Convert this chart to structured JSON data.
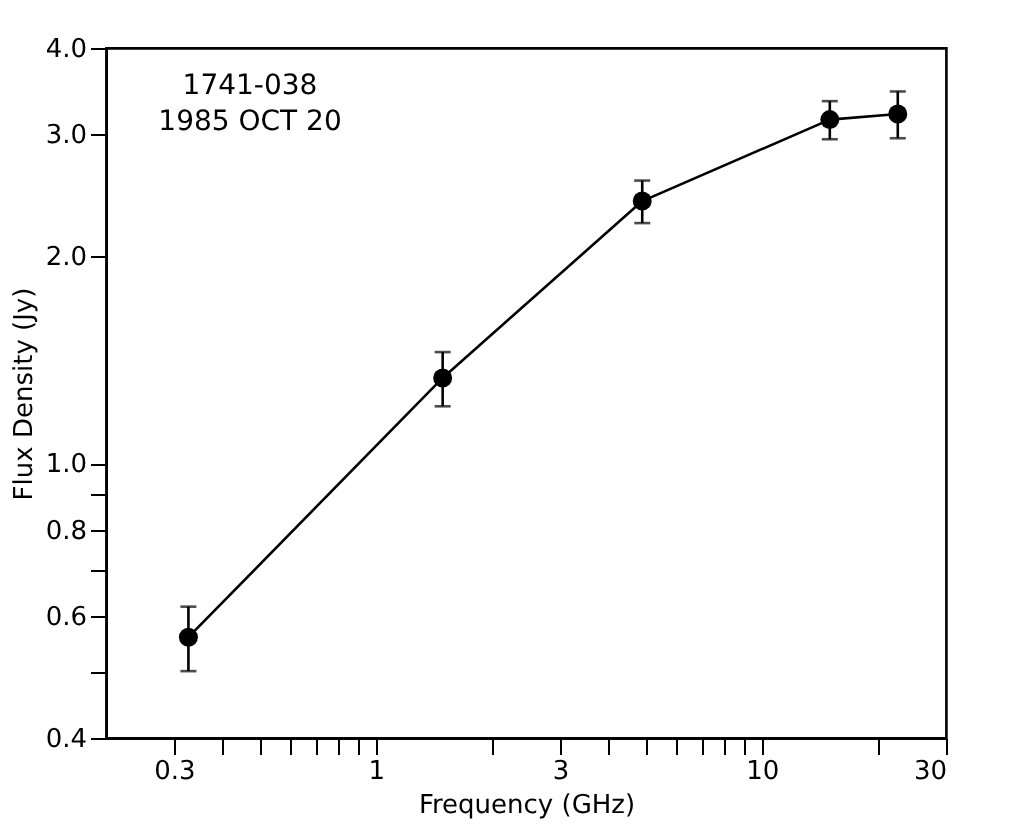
{
  "chart_data": {
    "type": "line",
    "xlabel": "Frequency (GHz)",
    "ylabel": "Flux Density (Jy)",
    "annotations": [
      "1741-038",
      "1985 OCT 20"
    ],
    "x": [
      0.327,
      1.49,
      4.9,
      15,
      22.5
    ],
    "series": [
      {
        "color": "#000000",
        "values": [
          0.56,
          1.33,
          2.4,
          3.15,
          3.21
        ],
        "errors": [
          0.06,
          0.12,
          0.17,
          0.2,
          0.25
        ]
      }
    ],
    "log": "xy",
    "marker": "circle",
    "line_style": "solid",
    "xlim": [
      0.2,
      30
    ],
    "ylim": [
      0.4,
      4.0
    ],
    "xticks": [
      {
        "value": 0.3,
        "label": "0.3"
      },
      {
        "value": 0.4,
        "label": null
      },
      {
        "value": 0.5,
        "label": null
      },
      {
        "value": 0.6,
        "label": null
      },
      {
        "value": 0.7,
        "label": null
      },
      {
        "value": 0.8,
        "label": null
      },
      {
        "value": 0.9,
        "label": null
      },
      1,
      {
        "value": 2,
        "label": null
      },
      3,
      {
        "value": 4,
        "label": null
      },
      {
        "value": 5,
        "label": null
      },
      {
        "value": 6,
        "label": null
      },
      {
        "value": 7,
        "label": null
      },
      {
        "value": 8,
        "label": null
      },
      {
        "value": 9,
        "label": null
      },
      10,
      {
        "value": 20,
        "label": null
      },
      30
    ],
    "yticks": [
      0.4,
      {
        "value": 0.5,
        "label": null
      },
      0.6,
      {
        "value": 0.7,
        "label": null
      },
      0.8,
      {
        "value": 0.9,
        "label": null
      },
      {
        "value": 1,
        "label": "1.0"
      },
      {
        "value": 2,
        "label": "2.0"
      },
      {
        "value": 3,
        "label": "3.0"
      },
      {
        "value": 4,
        "label": "4.0"
      }
    ]
  }
}
